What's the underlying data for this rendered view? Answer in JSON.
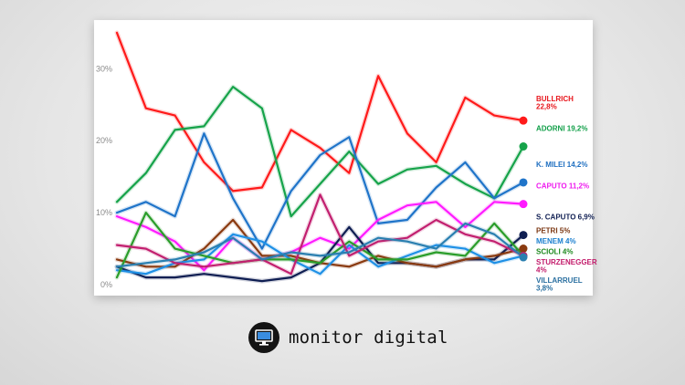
{
  "brand": {
    "name": "monitor digital",
    "logo_icon": "monitor-icon"
  },
  "chart_data": {
    "type": "line",
    "title": "",
    "xlabel": "",
    "ylabel": "",
    "ylim": [
      0,
      36
    ],
    "y_ticks": [
      {
        "value": 0,
        "label": "0%"
      },
      {
        "value": 10,
        "label": "10%"
      },
      {
        "value": 20,
        "label": "20%"
      },
      {
        "value": 30,
        "label": "30%"
      }
    ],
    "grid": false,
    "x_count": 16,
    "series": [
      {
        "name": "BULLRICH",
        "label": "BULLRICH\n22,8%",
        "color": "#ff1a1a",
        "label_color": "#e8161c",
        "values": [
          35,
          24.5,
          23.5,
          17,
          13,
          13.5,
          21.5,
          19,
          15.5,
          29,
          21,
          17,
          26,
          23.5,
          22.8
        ]
      },
      {
        "name": "ADORNI",
        "label": "ADORNI 19,2%",
        "color": "#16a34a",
        "label_color": "#13a04a",
        "values": [
          11.5,
          15.5,
          21.5,
          22,
          27.5,
          24.5,
          9.5,
          14,
          18.5,
          14,
          16,
          16.5,
          14,
          12,
          19.2
        ]
      },
      {
        "name": "K. MILEI",
        "label": "K. MILEI 14,2%",
        "color": "#1f74c9",
        "label_color": "#1f6fc0",
        "values": [
          10,
          11.5,
          9.5,
          21,
          12,
          5,
          13,
          18,
          20.5,
          8.5,
          9,
          13.5,
          17,
          12,
          14.2
        ]
      },
      {
        "name": "CAPUTO",
        "label": "CAPUTO 11,2%",
        "color": "#ff1aff",
        "label_color": "#ee1aee",
        "values": [
          9.5,
          8,
          6,
          2,
          6.5,
          3.5,
          4.5,
          6.5,
          5,
          9,
          11,
          11.5,
          8,
          11.5,
          11.2
        ]
      },
      {
        "name": "S. CAPUTO",
        "label": "S. CAPUTO 6,9%",
        "color": "#0f1e52",
        "label_color": "#0f1e52",
        "values": [
          2.5,
          1,
          1,
          1.5,
          1,
          0.5,
          1,
          3,
          8,
          3,
          3,
          2.5,
          3.5,
          3.5,
          6.9
        ]
      },
      {
        "name": "PETRI",
        "label": "PETRI 5%",
        "color": "#8a3a10",
        "label_color": "#7a3510",
        "values": [
          3.5,
          2.5,
          2.5,
          5,
          9,
          4,
          4,
          3,
          2.5,
          4,
          3,
          2.5,
          3.5,
          4,
          5
        ]
      },
      {
        "name": "MENEM",
        "label": "MENEM 4%",
        "color": "#1e90e6",
        "label_color": "#1a7fcf",
        "values": [
          2,
          1.5,
          3,
          3.5,
          7,
          6,
          3.5,
          1.5,
          5.5,
          2.5,
          4,
          5.5,
          5,
          3,
          4
        ]
      },
      {
        "name": "SCIOLI",
        "label": "SCIOLI 4%",
        "color": "#2a9d2a",
        "label_color": "#1f8a1f",
        "values": [
          1,
          10,
          5,
          4,
          3,
          3.5,
          3.5,
          3,
          6,
          3.5,
          3.5,
          4.5,
          4,
          8.5,
          4
        ]
      },
      {
        "name": "STURZENEGGER",
        "label": "STURZENEGGER\n4%",
        "color": "#c21f6f",
        "label_color": "#c21a6a",
        "values": [
          5.5,
          5,
          3,
          2.5,
          3,
          3.5,
          1.5,
          12.5,
          4,
          6,
          6.5,
          9,
          7,
          6,
          4
        ]
      },
      {
        "name": "VILLARRUEL",
        "label": "VILLARRUEL\n3,8%",
        "color": "#2a7fb0",
        "label_color": "#2a6fa0",
        "values": [
          2.5,
          3,
          3.5,
          4.5,
          6.5,
          3.5,
          4.5,
          4,
          4.5,
          6.5,
          6,
          5,
          8.5,
          7,
          3.8
        ]
      }
    ]
  }
}
